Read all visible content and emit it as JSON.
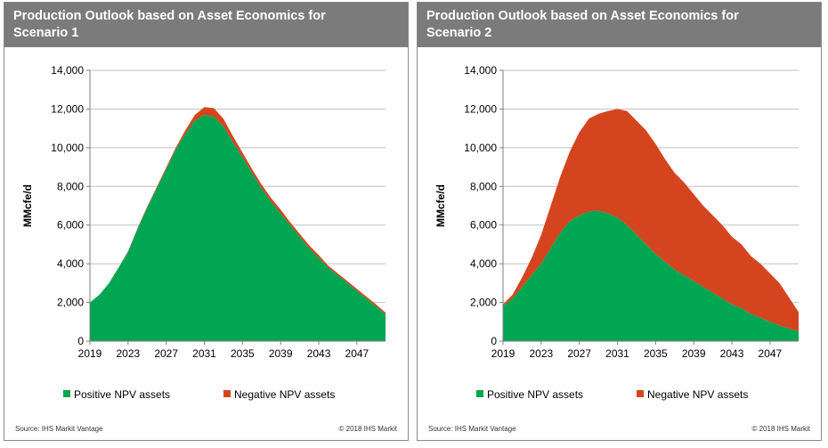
{
  "panels": [
    {
      "title_line1": "Production Outlook based on Asset Economics for",
      "title_line2": "Scenario 1",
      "source": "Source:  IHS Markit Vantage",
      "copyright": "© 2018  IHS Markit"
    },
    {
      "title_line1": "Production Outlook based on Asset Economics for",
      "title_line2": "Scenario 2",
      "source": "Source:  IHS Markit Vantage",
      "copyright": "© 2018  IHS Markit"
    }
  ],
  "colors": {
    "positive": "#00a651",
    "negative": "#d4451f",
    "axis": "#7f7f7f",
    "grid": "#bfbfbf"
  },
  "chart_data": [
    {
      "type": "area",
      "stacked": true,
      "ylabel": "MMcfe/d",
      "ylim": [
        0,
        14000
      ],
      "yticks": [
        "0",
        "2,000",
        "4,000",
        "6,000",
        "8,000",
        "10,000",
        "12,000",
        "14,000"
      ],
      "xticks": [
        "2019",
        "2023",
        "2027",
        "2031",
        "2035",
        "2039",
        "2043",
        "2047"
      ],
      "grid": true,
      "legend": "bottom",
      "x": [
        2019,
        2020,
        2021,
        2022,
        2023,
        2024,
        2025,
        2026,
        2027,
        2028,
        2029,
        2030,
        2031,
        2032,
        2033,
        2034,
        2035,
        2036,
        2037,
        2038,
        2039,
        2040,
        2041,
        2042,
        2043,
        2044,
        2045,
        2046,
        2047,
        2048,
        2049,
        2050
      ],
      "series": [
        {
          "name": "Positive NPV assets",
          "values": [
            2000,
            2400,
            3000,
            3800,
            4600,
            5800,
            6900,
            7900,
            8900,
            9900,
            10700,
            11400,
            11700,
            11600,
            11100,
            10300,
            9500,
            8700,
            7900,
            7200,
            6600,
            6000,
            5400,
            4800,
            4300,
            3800,
            3400,
            3000,
            2600,
            2200,
            1800,
            1400
          ]
        },
        {
          "name": "Negative NPV assets",
          "values": [
            0,
            0,
            0,
            0,
            50,
            50,
            50,
            60,
            80,
            100,
            200,
            300,
            400,
            450,
            400,
            300,
            250,
            200,
            200,
            200,
            200,
            150,
            150,
            150,
            150,
            100,
            100,
            100,
            100,
            100,
            100,
            80
          ]
        }
      ]
    },
    {
      "type": "area",
      "stacked": true,
      "ylabel": "MMcfe/d",
      "ylim": [
        0,
        14000
      ],
      "yticks": [
        "0",
        "2,000",
        "4,000",
        "6,000",
        "8,000",
        "10,000",
        "12,000",
        "14,000"
      ],
      "xticks": [
        "2019",
        "2023",
        "2027",
        "2031",
        "2035",
        "2039",
        "2043",
        "2047"
      ],
      "grid": true,
      "legend": "bottom",
      "x": [
        2019,
        2020,
        2021,
        2022,
        2023,
        2024,
        2025,
        2026,
        2027,
        2028,
        2029,
        2030,
        2031,
        2032,
        2033,
        2034,
        2035,
        2036,
        2037,
        2038,
        2039,
        2040,
        2041,
        2042,
        2043,
        2044,
        2045,
        2046,
        2047,
        2048,
        2049,
        2050
      ],
      "series": [
        {
          "name": "Positive NPV assets",
          "values": [
            1800,
            2200,
            2800,
            3400,
            4000,
            4800,
            5600,
            6200,
            6500,
            6700,
            6750,
            6600,
            6400,
            6000,
            5500,
            5000,
            4500,
            4100,
            3700,
            3400,
            3100,
            2800,
            2500,
            2200,
            1900,
            1700,
            1400,
            1200,
            1000,
            800,
            650,
            500
          ]
        },
        {
          "name": "Negative NPV assets",
          "values": [
            100,
            200,
            500,
            900,
            1500,
            2200,
            2900,
            3600,
            4300,
            4800,
            5000,
            5300,
            5600,
            5900,
            5900,
            5900,
            5700,
            5300,
            5000,
            4800,
            4500,
            4200,
            4000,
            3800,
            3500,
            3300,
            3000,
            2800,
            2500,
            2200,
            1600,
            1000
          ]
        }
      ]
    }
  ]
}
